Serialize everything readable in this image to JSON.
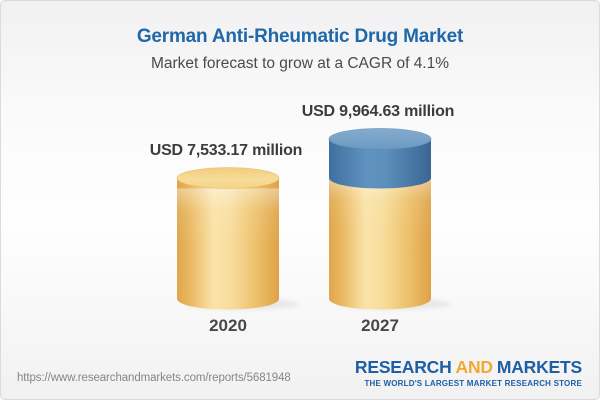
{
  "header": {
    "title": "German Anti-Rheumatic Drug Market",
    "subtitle": "Market forecast to grow at a CAGR of 4.1%"
  },
  "chart_data": {
    "type": "bar",
    "variant": "3d-cylinder",
    "title": "German Anti-Rheumatic Drug Market",
    "subtitle": "Market forecast to grow at a CAGR of 4.1%",
    "unit": "USD million",
    "cagr_percent": 4.1,
    "categories": [
      "2020",
      "2027"
    ],
    "values": [
      7533.17,
      9964.63
    ],
    "value_labels": [
      "USD 7,533.17 million",
      "USD 9,964.63 million"
    ],
    "series": [
      {
        "name": "base value",
        "color": "#f2c973"
      },
      {
        "name": "growth over 2020",
        "color": "#5c90bc"
      }
    ],
    "legend": false,
    "grid": false,
    "ylim": [
      0,
      10500
    ]
  },
  "footer": {
    "url": "https://www.researchandmarkets.com/reports/5681948",
    "logo": {
      "part1": "RESEARCH",
      "part2": "AND",
      "part3": "MARKETS",
      "tagline": "THE WORLD'S LARGEST MARKET RESEARCH STORE"
    }
  },
  "colors": {
    "title_blue": "#2068a9",
    "bar_gold": "#f5d68c",
    "bar_blue": "#5c90bc",
    "logo_blue": "#1d5fa5",
    "logo_gold": "#f2a92f"
  }
}
